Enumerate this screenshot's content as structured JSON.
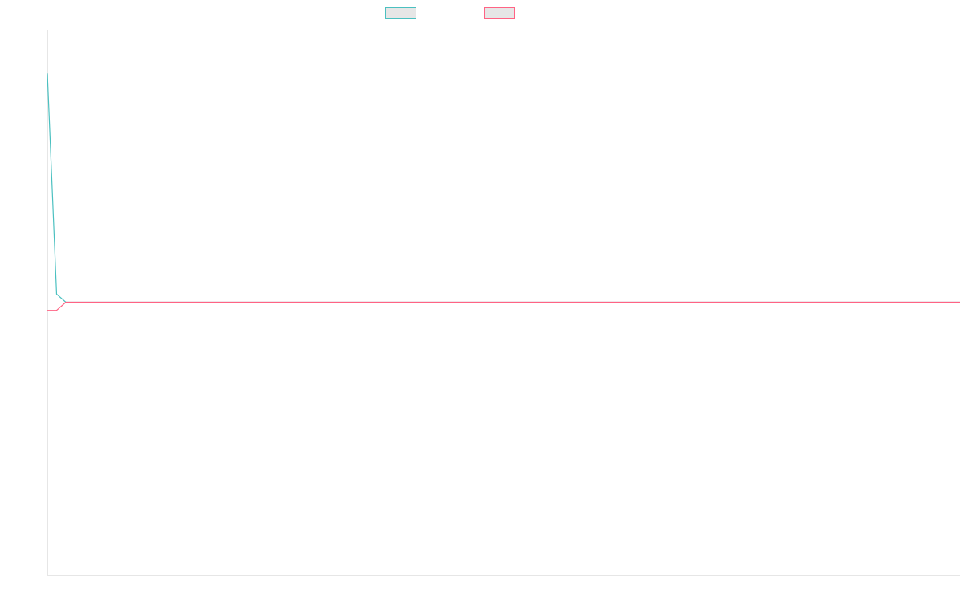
{
  "chart_data": {
    "type": "line",
    "title": "",
    "xlabel": "",
    "ylabel": "",
    "grid": false,
    "legend_placement": "top",
    "ylim": [
      -100,
      100
    ],
    "series": [
      {
        "color": "#4bc0c0",
        "values": [
          84,
          3,
          0,
          0,
          0,
          0,
          0,
          0,
          0,
          0,
          0,
          0,
          0,
          0,
          0,
          0,
          0,
          0,
          0,
          0,
          0,
          0,
          0,
          0,
          0,
          0,
          0,
          0,
          0,
          0,
          0,
          0,
          0,
          0,
          0,
          0,
          0,
          0,
          0,
          0,
          0,
          0,
          0,
          0,
          0,
          0,
          0,
          0,
          0,
          0,
          0,
          0,
          0,
          0,
          0,
          0,
          0,
          0,
          0,
          0,
          0,
          0,
          0,
          0,
          0,
          0,
          0,
          0,
          0,
          0,
          0,
          0,
          0,
          0,
          0,
          0,
          0,
          0,
          0,
          0,
          0,
          0,
          0,
          0,
          0,
          0,
          0,
          0,
          0,
          0,
          0,
          0,
          0,
          0,
          0,
          0,
          0,
          0,
          0,
          0
        ]
      },
      {
        "color": "#ff6384",
        "values": [
          -3,
          -3,
          0,
          0,
          0,
          0,
          0,
          0,
          0,
          0,
          0,
          0,
          0,
          0,
          0,
          0,
          0,
          0,
          0,
          0,
          0,
          0,
          0,
          0,
          0,
          0,
          0,
          0,
          0,
          0,
          0,
          0,
          0,
          0,
          0,
          0,
          0,
          0,
          0,
          0,
          0,
          0,
          0,
          0,
          0,
          0,
          0,
          0,
          0,
          0,
          0,
          0,
          0,
          0,
          0,
          0,
          0,
          0,
          0,
          0,
          0,
          0,
          0,
          0,
          0,
          0,
          0,
          0,
          0,
          0,
          0,
          0,
          0,
          0,
          0,
          0,
          0,
          0,
          0,
          0,
          0,
          0,
          0,
          0,
          0,
          0,
          0,
          0,
          0,
          0,
          0,
          0,
          0,
          0,
          0,
          0,
          0,
          0,
          0,
          0
        ]
      }
    ]
  }
}
